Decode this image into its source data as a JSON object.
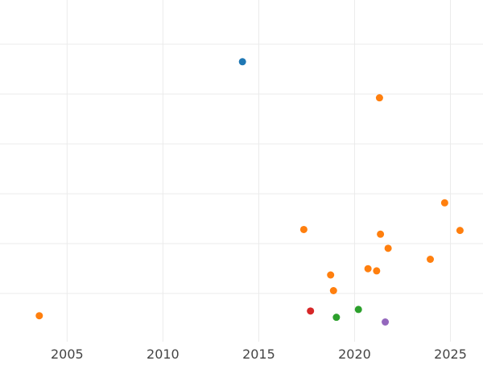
{
  "chart_data": {
    "type": "scatter",
    "title": "",
    "xlabel": "",
    "ylabel": "",
    "xlim": [
      2001.5,
      2026.7
    ],
    "ylim": [
      0,
      1
    ],
    "grid": true,
    "x_ticks": [
      "2005",
      "2010",
      "2015",
      "2020",
      "2025"
    ],
    "series": [
      {
        "color": "#1f77b4",
        "points": [
          {
            "x": 2014.15,
            "y": 0.88
          }
        ]
      },
      {
        "color": "#ff7f0e",
        "points": [
          {
            "x": 2021.3,
            "y": 0.765
          },
          {
            "x": 2024.7,
            "y": 0.43
          },
          {
            "x": 2017.35,
            "y": 0.345
          },
          {
            "x": 2025.5,
            "y": 0.342
          },
          {
            "x": 2021.35,
            "y": 0.33
          },
          {
            "x": 2021.75,
            "y": 0.285
          },
          {
            "x": 2023.95,
            "y": 0.25
          },
          {
            "x": 2020.7,
            "y": 0.22
          },
          {
            "x": 2021.15,
            "y": 0.213
          },
          {
            "x": 2018.75,
            "y": 0.2
          },
          {
            "x": 2018.9,
            "y": 0.15
          },
          {
            "x": 2003.55,
            "y": 0.07
          }
        ]
      },
      {
        "color": "#2ca02c",
        "points": [
          {
            "x": 2020.2,
            "y": 0.09
          },
          {
            "x": 2019.05,
            "y": 0.065
          }
        ]
      },
      {
        "color": "#d62728",
        "points": [
          {
            "x": 2017.7,
            "y": 0.085
          }
        ]
      },
      {
        "color": "#9467bd",
        "points": [
          {
            "x": 2021.6,
            "y": 0.05
          }
        ]
      }
    ]
  }
}
